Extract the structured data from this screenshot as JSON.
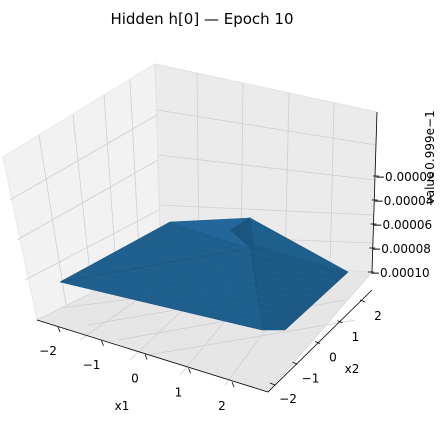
{
  "chart_data": {
    "type": "surface",
    "title": "Hidden h[0] — Epoch 10",
    "xlabel": "x1",
    "ylabel": "x2",
    "zlabel": "value",
    "z_offset_label": "0.999e−1",
    "x_ticks": [
      "−2",
      "−1",
      "0",
      "1",
      "2"
    ],
    "y_ticks": [
      "−2",
      "−1",
      "0",
      "1",
      "2"
    ],
    "z_ticks": [
      "−0.00002",
      "−0.00004",
      "−0.00006",
      "−0.00008",
      "−0.00010"
    ],
    "xlim": [
      -2,
      2
    ],
    "ylim": [
      -2,
      2
    ],
    "zlim": [
      -0.00011,
      -1e-05
    ],
    "surface_color": "#1f5f8e",
    "grid": true
  }
}
